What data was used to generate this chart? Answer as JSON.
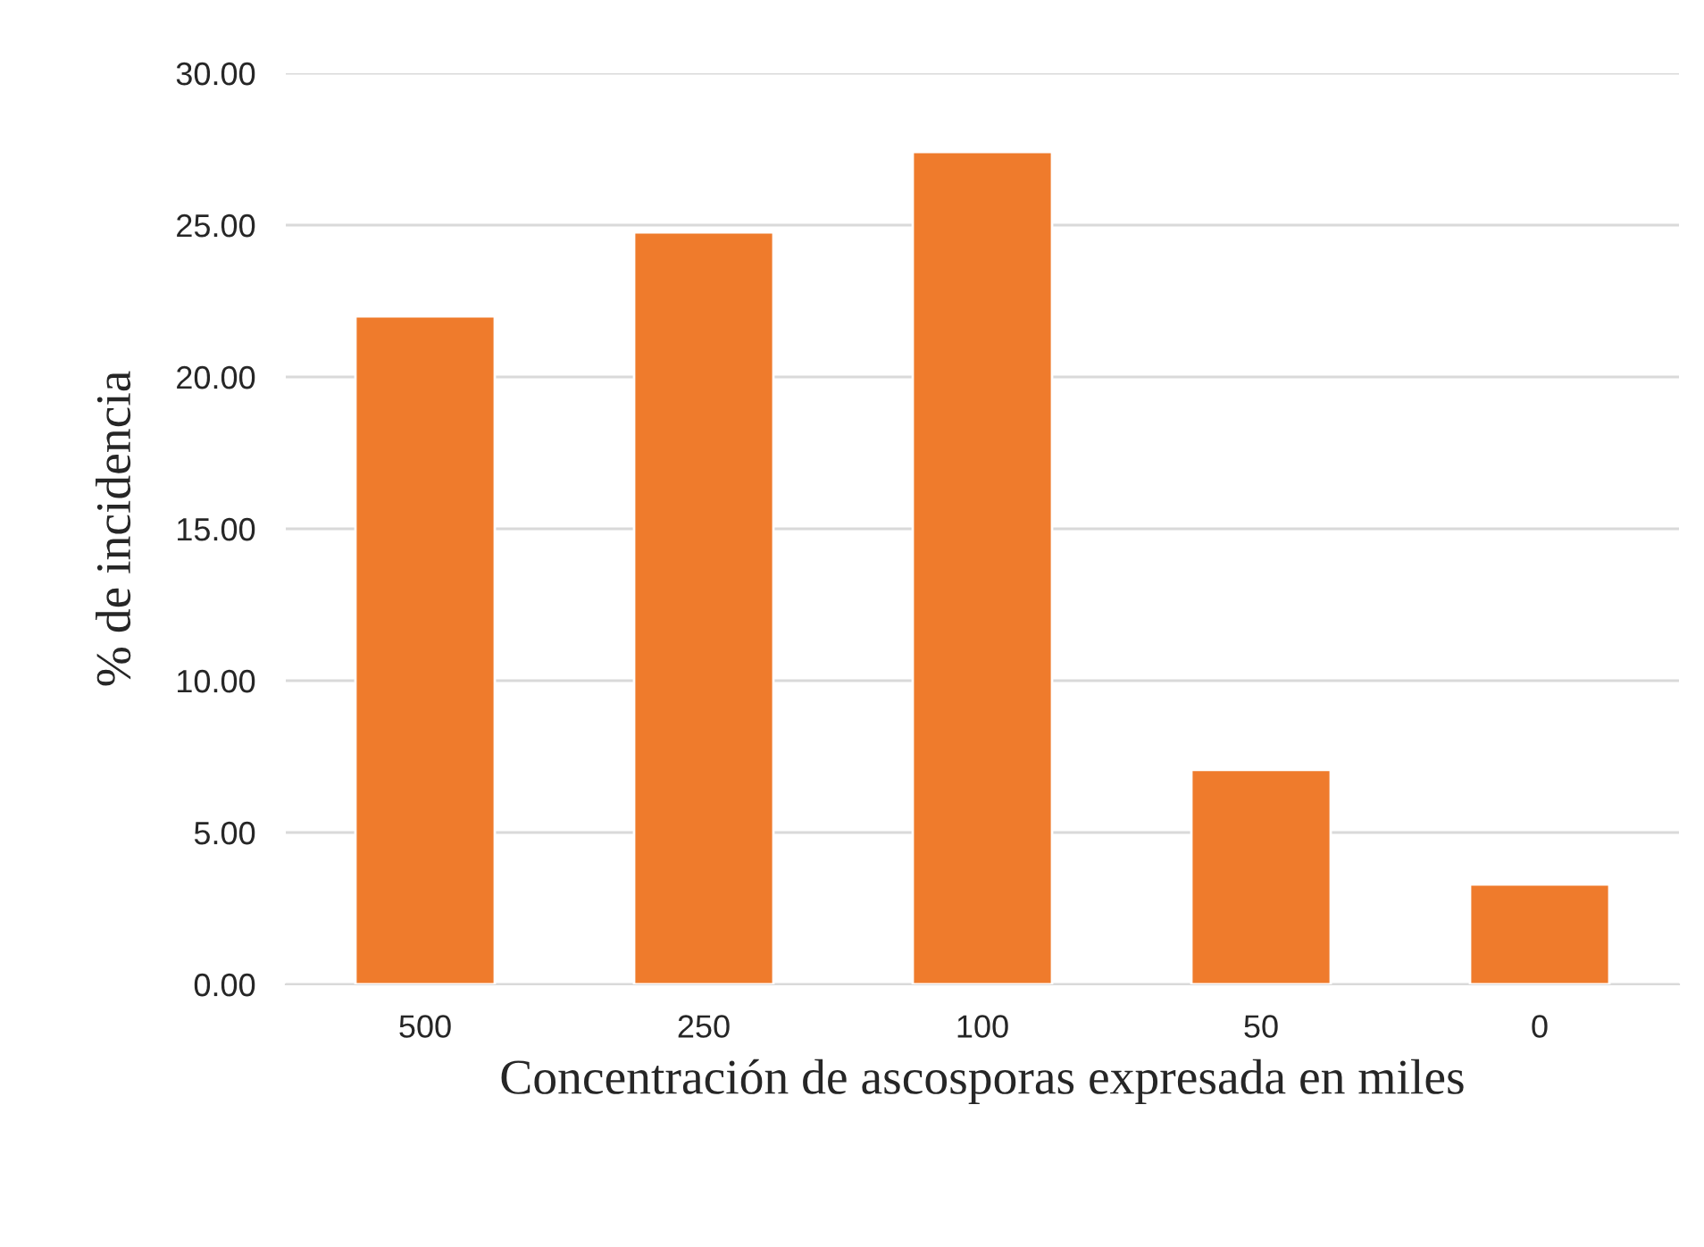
{
  "chart_data": {
    "type": "bar",
    "xlabel": "Concentración de ascosporas expresada en miles",
    "ylabel": "% de incidencia",
    "categories": [
      "500",
      "250",
      "100",
      "50",
      "0"
    ],
    "values": [
      22.0,
      24.76,
      27.41,
      7.06,
      3.29
    ],
    "color": "#ef7b2c",
    "ylim": [
      0,
      30
    ],
    "yticks": [
      {
        "value": 0,
        "label": "0.00"
      },
      {
        "value": 5,
        "label": "5.00"
      },
      {
        "value": 10,
        "label": "10.00"
      },
      {
        "value": 15,
        "label": "15.00"
      },
      {
        "value": 20,
        "label": "20.00"
      },
      {
        "value": 25,
        "label": "25.00"
      },
      {
        "value": 30,
        "label": "30.00"
      }
    ],
    "grid": "y"
  }
}
